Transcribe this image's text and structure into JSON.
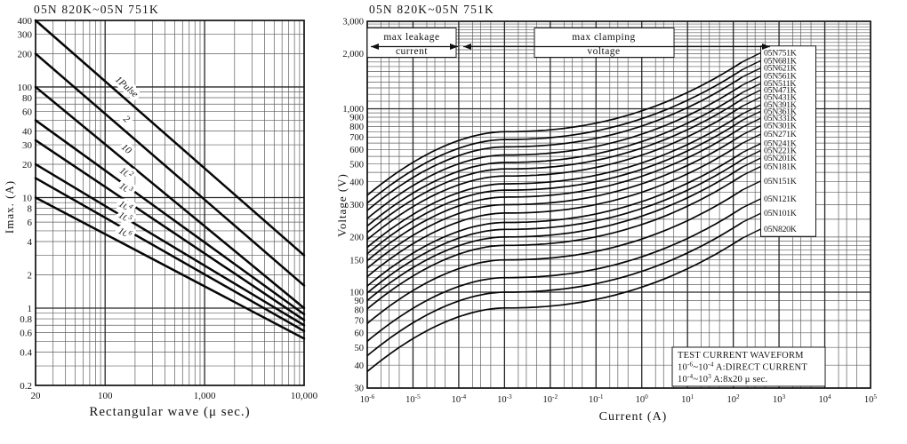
{
  "colors": {
    "ink": "#111111",
    "grid_minor": "#5f5f5f",
    "grid_major": "#262626",
    "background": "#ffffff"
  },
  "chart_data": [
    {
      "type": "line",
      "title": "05N 820K~05N 751K",
      "xlabel": "Rectangular wave (μ sec.)",
      "ylabel": "Imax. (A)",
      "x_scale": "log",
      "y_scale": "log",
      "xlim": [
        20,
        10000
      ],
      "ylim": [
        0.2,
        400
      ],
      "x_ticks": [
        {
          "v": 20,
          "label": "20"
        },
        {
          "v": 100,
          "label": "100"
        },
        {
          "v": 1000,
          "label": "1,000"
        },
        {
          "v": 10000,
          "label": "10,000"
        }
      ],
      "y_ticks": [
        {
          "v": 400,
          "label": "400"
        },
        {
          "v": 300,
          "label": "300"
        },
        {
          "v": 200,
          "label": "200"
        },
        {
          "v": 100,
          "label": "100"
        },
        {
          "v": 80,
          "label": "80"
        },
        {
          "v": 60,
          "label": "60"
        },
        {
          "v": 40,
          "label": "40"
        },
        {
          "v": 30,
          "label": "30"
        },
        {
          "v": 20,
          "label": "20"
        },
        {
          "v": 10,
          "label": "10"
        },
        {
          "v": 8,
          "label": "8"
        },
        {
          "v": 6,
          "label": "6"
        },
        {
          "v": 4,
          "label": "4"
        },
        {
          "v": 2,
          "label": "2"
        },
        {
          "v": 1,
          "label": "1"
        },
        {
          "v": 0.8,
          "label": "0.8"
        },
        {
          "v": 0.6,
          "label": "0.6"
        },
        {
          "v": 0.4,
          "label": "0.4"
        },
        {
          "v": 0.2,
          "label": "0.2"
        }
      ],
      "series": [
        {
          "label": "1Pulse",
          "points": [
            [
              20,
              400
            ],
            [
              10000,
              3.0
            ]
          ]
        },
        {
          "label": "2",
          "points": [
            [
              20,
              200
            ],
            [
              10000,
              1.6
            ]
          ]
        },
        {
          "label": "10",
          "points": [
            [
              20,
              100
            ],
            [
              10000,
              1.0
            ]
          ]
        },
        {
          "label": "10^2",
          "points": [
            [
              20,
              50
            ],
            [
              10000,
              0.88
            ]
          ]
        },
        {
          "label": "10^3",
          "points": [
            [
              20,
              33
            ],
            [
              10000,
              0.78
            ]
          ]
        },
        {
          "label": "10^4",
          "points": [
            [
              20,
              20
            ],
            [
              10000,
              0.7
            ]
          ]
        },
        {
          "label": "10^5",
          "points": [
            [
              20,
              15
            ],
            [
              10000,
              0.62
            ]
          ]
        },
        {
          "label": "10^6",
          "points": [
            [
              20,
              10
            ],
            [
              10000,
              0.53
            ]
          ]
        }
      ]
    },
    {
      "type": "line",
      "title": "05N 820K~05N 751K",
      "xlabel": "Current (A)",
      "ylabel": "Voltage (V)",
      "x_scale": "log",
      "y_scale": "log",
      "xlim": [
        1e-06,
        100000
      ],
      "ylim": [
        30,
        3000
      ],
      "x_ticks": [
        {
          "e": -6,
          "label": "10^-6"
        },
        {
          "e": -5,
          "label": "10^-5"
        },
        {
          "e": -4,
          "label": "10^-4"
        },
        {
          "e": -3,
          "label": "10^-3"
        },
        {
          "e": -2,
          "label": "10^-2"
        },
        {
          "e": -1,
          "label": "10^-1"
        },
        {
          "e": 0,
          "label": "10^0"
        },
        {
          "e": 1,
          "label": "10^1"
        },
        {
          "e": 2,
          "label": "10^2"
        },
        {
          "e": 3,
          "label": "10^3"
        },
        {
          "e": 4,
          "label": "10^4"
        },
        {
          "e": 5,
          "label": "10^5"
        }
      ],
      "y_ticks": [
        {
          "v": 3000,
          "label": "3,000"
        },
        {
          "v": 2000,
          "label": "2,000"
        },
        {
          "v": 1000,
          "label": "1,000"
        },
        {
          "v": 900,
          "label": "900"
        },
        {
          "v": 800,
          "label": "800"
        },
        {
          "v": 700,
          "label": "700"
        },
        {
          "v": 600,
          "label": "600"
        },
        {
          "v": 500,
          "label": "500"
        },
        {
          "v": 400,
          "label": "400"
        },
        {
          "v": 300,
          "label": "300"
        },
        {
          "v": 200,
          "label": "200"
        },
        {
          "v": 150,
          "label": "150"
        },
        {
          "v": 100,
          "label": "100"
        },
        {
          "v": 90,
          "label": "90"
        },
        {
          "v": 80,
          "label": "80"
        },
        {
          "v": 70,
          "label": "70"
        },
        {
          "v": 60,
          "label": "60"
        },
        {
          "v": 50,
          "label": "50"
        },
        {
          "v": 40,
          "label": "40"
        },
        {
          "v": 30,
          "label": "30"
        }
      ],
      "series": [
        {
          "name": "05N751K",
          "v_1ma": 750
        },
        {
          "name": "05N681K",
          "v_1ma": 680
        },
        {
          "name": "05N621K",
          "v_1ma": 620
        },
        {
          "name": "05N561K",
          "v_1ma": 560
        },
        {
          "name": "05N511K",
          "v_1ma": 510
        },
        {
          "name": "05N471K",
          "v_1ma": 470
        },
        {
          "name": "05N431K",
          "v_1ma": 430
        },
        {
          "name": "05N391K",
          "v_1ma": 390
        },
        {
          "name": "05N361K",
          "v_1ma": 360
        },
        {
          "name": "05N331K",
          "v_1ma": 330
        },
        {
          "name": "05N301K",
          "v_1ma": 300
        },
        {
          "name": "05N271K",
          "v_1ma": 270
        },
        {
          "name": "05N241K",
          "v_1ma": 240
        },
        {
          "name": "05N221K",
          "v_1ma": 220
        },
        {
          "name": "05N201K",
          "v_1ma": 200
        },
        {
          "name": "05N181K",
          "v_1ma": 180
        },
        {
          "name": "05N151K",
          "v_1ma": 150
        },
        {
          "name": "05N121K",
          "v_1ma": 120
        },
        {
          "name": "05N101K",
          "v_1ma": 100
        },
        {
          "name": "05N820K",
          "v_1ma": 82
        }
      ],
      "curve_model": {
        "start_ratio": 0.45,
        "clamp_ratio": 2.7,
        "leak_power": 1.8,
        "clamp_power": 2.2,
        "i_min_log": -6,
        "i_knee_log": -3,
        "i_end_log": 2.2,
        "i_label_log": 2.5
      },
      "annotations": {
        "leakage": {
          "line1": "max leakage",
          "line2": "current"
        },
        "clamping": {
          "line1": "max clamping",
          "line2": "voltage"
        },
        "test_box": {
          "lines": [
            "TEST CURRENT WAVEFORM",
            "10^-6~10^-4 A:DIRECT CURRENT",
            "10^-4~10^3 A:8x20 μ sec."
          ]
        }
      }
    }
  ]
}
